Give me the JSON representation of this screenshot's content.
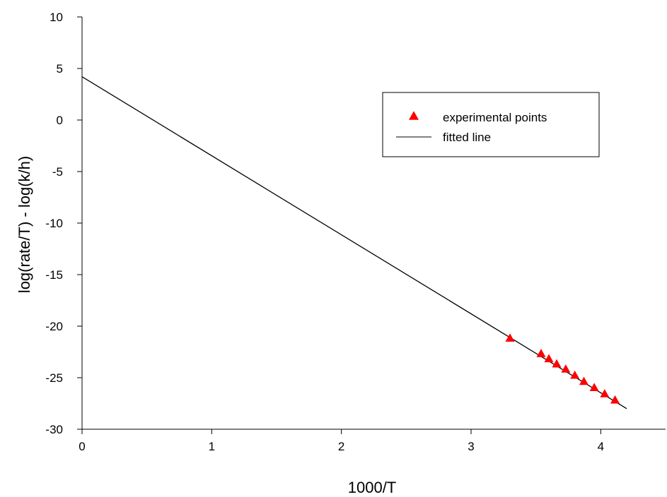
{
  "chart_data": {
    "type": "scatter",
    "xlabel": "1000/T",
    "ylabel": "log(rate/T) - log(k/h)",
    "xlim": [
      0,
      4.5
    ],
    "ylim": [
      -30,
      10
    ],
    "xticks": [
      0,
      1,
      2,
      3,
      4
    ],
    "yticks": [
      10,
      5,
      0,
      -5,
      -10,
      -15,
      -20,
      -25,
      -30
    ],
    "grid": false,
    "legend_position": "top-right",
    "series": [
      {
        "name": "experimental points",
        "kind": "scatter",
        "marker": "triangle",
        "color": "#ff0000",
        "x": [
          3.3,
          3.54,
          3.6,
          3.66,
          3.73,
          3.8,
          3.87,
          3.95,
          4.03,
          4.11
        ],
        "y": [
          -21.2,
          -22.7,
          -23.2,
          -23.7,
          -24.2,
          -24.8,
          -25.4,
          -26.0,
          -26.6,
          -27.2
        ]
      },
      {
        "name": "fitted line",
        "kind": "line",
        "color": "#000000",
        "x": [
          0,
          4.2
        ],
        "y": [
          4.2,
          -28.0
        ]
      }
    ]
  }
}
